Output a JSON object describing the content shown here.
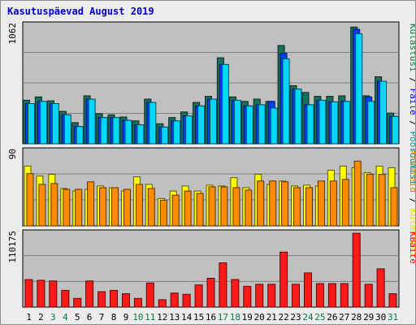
{
  "chart_data": {
    "type": "bar",
    "title": "Kasutuspäevad August 2019",
    "categories": [
      "1",
      "2",
      "3",
      "4",
      "5",
      "6",
      "7",
      "8",
      "9",
      "10",
      "11",
      "12",
      "13",
      "14",
      "15",
      "16",
      "17",
      "18",
      "19",
      "20",
      "21",
      "22",
      "23",
      "24",
      "25",
      "26",
      "27",
      "28",
      "29",
      "30",
      "31"
    ],
    "weekend_days": [
      "3",
      "4",
      "10",
      "11",
      "17",
      "18",
      "24",
      "25",
      "31"
    ],
    "panels": [
      {
        "name": "hits",
        "max_label": "1062",
        "ymax": 1062,
        "side_labels": [
          {
            "text": "Külastusi",
            "color": "#008040"
          },
          {
            "text": " / ",
            "color": "#000000"
          },
          {
            "text": "Faile",
            "color": "#0000ff"
          },
          {
            "text": " / ",
            "color": "#000000"
          },
          {
            "text": "Pöördumisi",
            "color": "#009090"
          }
        ],
        "series": [
          {
            "name": "Pöördumisi",
            "color": "#1a6e5c",
            "values": [
              390,
              420,
              385,
              290,
              190,
              430,
              270,
              260,
              240,
              205,
              400,
              180,
              235,
              285,
              370,
              425,
              770,
              420,
              380,
              400,
              380,
              880,
              520,
              460,
              425,
              425,
              430,
              1045,
              430,
              600,
              275
            ]
          },
          {
            "name": "Faile",
            "color": "#0040ff",
            "values": [
              360,
              380,
              360,
              260,
              155,
              400,
              235,
              235,
              210,
              170,
              370,
              150,
              205,
              250,
              340,
              400,
              710,
              390,
              340,
              350,
              380,
              810,
              490,
              350,
              390,
              375,
              380,
              1025,
              420,
              560,
              245
            ]
          },
          {
            "name": "Külastusi",
            "color": "#00d8ff",
            "values": [
              360,
              380,
              360,
              260,
              155,
              400,
              235,
              235,
              210,
              170,
              370,
              150,
              205,
              250,
              340,
              400,
              710,
              390,
              340,
              350,
              320,
              760,
              490,
              350,
              390,
              375,
              380,
              985,
              380,
              560,
              245
            ]
          }
        ]
      },
      {
        "name": "visits",
        "max_label": "90",
        "ymax": 90,
        "side_labels": [
          {
            "text": "Arvuteid",
            "color": "#e08000"
          },
          {
            "text": " / ",
            "color": "#000000"
          },
          {
            "text": "Külastusi",
            "color": "#e0e000"
          }
        ],
        "series": [
          {
            "name": "Külastusi",
            "color": "#ffff00",
            "values": [
              72,
              60,
              62,
              45,
              42,
              44,
              48,
              46,
              42,
              59,
              50,
              33,
              42,
              48,
              42,
              49,
              48,
              58,
              46,
              62,
              50,
              54,
              48,
              49,
              48,
              67,
              72,
              70,
              64,
              72,
              70
            ]
          },
          {
            "name": "Arvuteid",
            "color": "#ff8c00",
            "values": [
              63,
              50,
              51,
              44,
              44,
              53,
              46,
              46,
              44,
              50,
              45,
              31,
              37,
              42,
              39,
              47,
              47,
              46,
              43,
              54,
              54,
              53,
              46,
              46,
              54,
              54,
              56,
              78,
              62,
              62,
              46
            ]
          }
        ]
      },
      {
        "name": "kbytes",
        "max_label": "110175",
        "ymax": 110175,
        "side_labels": [
          {
            "text": "KBaite",
            "color": "#ff0000"
          }
        ],
        "series": [
          {
            "name": "KBaite",
            "color": "#ff1a1a",
            "values": [
              41000,
              40000,
              39000,
              25000,
              13000,
              39000,
              23000,
              25000,
              20000,
              13000,
              36000,
              11000,
              21000,
              19000,
              33000,
              43000,
              66000,
              41000,
              31000,
              34000,
              34000,
              82000,
              34000,
              51000,
              35000,
              35000,
              35000,
              110000,
              34000,
              57000,
              20000
            ]
          }
        ]
      }
    ]
  }
}
